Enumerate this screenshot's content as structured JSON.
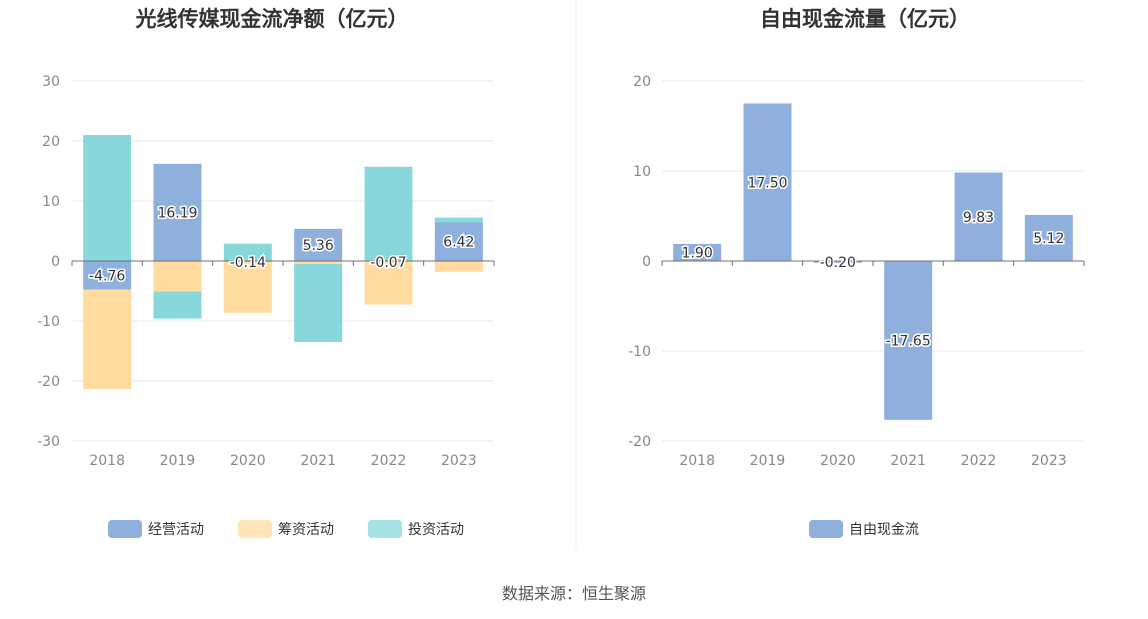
{
  "source_text": "数据来源：恒生聚源",
  "chart_data": [
    {
      "type": "bar",
      "stacked": true,
      "title": "光线传媒现金流净额（亿元）",
      "categories": [
        "2018",
        "2019",
        "2020",
        "2021",
        "2022",
        "2023"
      ],
      "ylim": [
        -30,
        30
      ],
      "yticks": [
        30,
        20,
        10,
        0,
        -10,
        -20,
        -30
      ],
      "grid": true,
      "legend_position": "bottom",
      "series": [
        {
          "name": "经营活动",
          "color": "#8fafdc",
          "values": [
            -4.76,
            16.19,
            -0.14,
            5.36,
            -0.07,
            6.42
          ],
          "labels": [
            "-4.76",
            "16.19",
            "-0.14",
            "5.36",
            "-0.07",
            "6.42"
          ]
        },
        {
          "name": "筹资活动",
          "color": "#ffdba0",
          "values": [
            -16.6,
            -5.1,
            -8.5,
            -0.5,
            -7.2,
            -1.8
          ]
        },
        {
          "name": "投资活动",
          "color": "#88d8db",
          "values": [
            21.0,
            -4.5,
            2.9,
            -13.0,
            15.7,
            0.8
          ]
        }
      ]
    },
    {
      "type": "bar",
      "title": "自由现金流量（亿元）",
      "categories": [
        "2018",
        "2019",
        "2020",
        "2021",
        "2022",
        "2023"
      ],
      "ylim": [
        -20,
        20
      ],
      "yticks": [
        20,
        10,
        0,
        -10,
        -20
      ],
      "grid": true,
      "legend_position": "bottom",
      "series": [
        {
          "name": "自由现金流",
          "color": "#8fafdc",
          "values": [
            1.9,
            17.5,
            -0.2,
            -17.65,
            9.83,
            5.12
          ],
          "labels": [
            "1.90",
            "17.50",
            "-0.20",
            "-17.65",
            "9.83",
            "5.12"
          ]
        }
      ]
    }
  ]
}
